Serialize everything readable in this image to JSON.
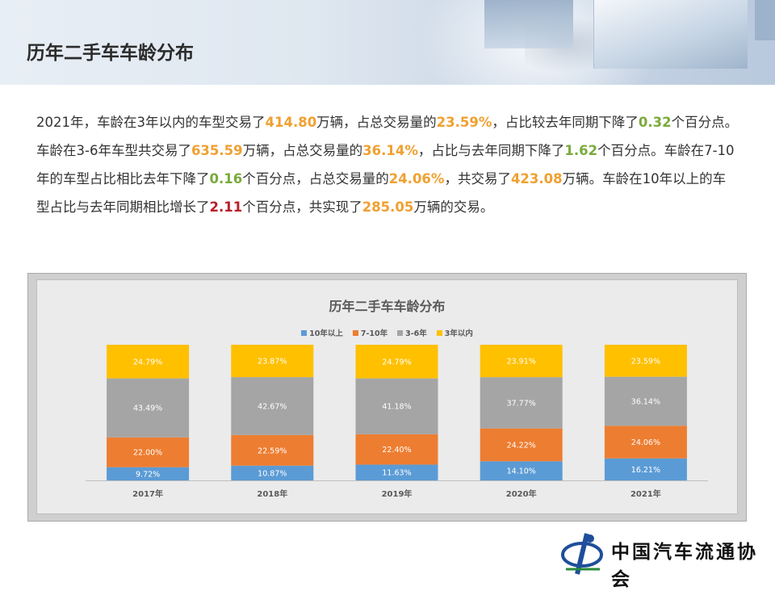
{
  "page": {
    "title": "历年二手车车龄分布"
  },
  "intro": {
    "segments": [
      {
        "t": "2021年，车龄在3年以内的车型交易了",
        "c": "n"
      },
      {
        "t": "414.80",
        "c": "orange"
      },
      {
        "t": "万辆，占总交易量的",
        "c": "n"
      },
      {
        "t": "23.59%",
        "c": "orange"
      },
      {
        "t": "，占比较去年同期下降了",
        "c": "n"
      },
      {
        "t": "0.32",
        "c": "green"
      },
      {
        "t": "个百分点。车龄在3-6年车型共交易了",
        "c": "n"
      },
      {
        "t": "635.59",
        "c": "orange"
      },
      {
        "t": "万辆，占总交易量的",
        "c": "n"
      },
      {
        "t": "36.14%",
        "c": "orange"
      },
      {
        "t": "，占比与去年同期下降了",
        "c": "n"
      },
      {
        "t": "1.62",
        "c": "green"
      },
      {
        "t": "个百分点。车龄在7-10年的车型占比相比去年下降了",
        "c": "n"
      },
      {
        "t": "0.16",
        "c": "green"
      },
      {
        "t": "个百分点，占总交易量的",
        "c": "n"
      },
      {
        "t": "24.06%",
        "c": "orange"
      },
      {
        "t": "，共交易了",
        "c": "n"
      },
      {
        "t": "423.08",
        "c": "orange"
      },
      {
        "t": "万辆。车龄在10年以上的车型占比与去年同期相比增长了",
        "c": "n"
      },
      {
        "t": "2.11",
        "c": "red"
      },
      {
        "t": "个百分点，共实现了",
        "c": "n"
      },
      {
        "t": "285.05",
        "c": "orange"
      },
      {
        "t": "万辆的交易。",
        "c": "n"
      }
    ]
  },
  "chart_data": {
    "type": "bar",
    "stacked": true,
    "normalized_percent": true,
    "title": "历年二手车车龄分布",
    "categories": [
      "2017年",
      "2018年",
      "2019年",
      "2020年",
      "2021年"
    ],
    "series": [
      {
        "name": "10年以上",
        "color": "#5b9bd5",
        "values": [
          9.72,
          10.87,
          11.63,
          14.1,
          16.21
        ]
      },
      {
        "name": "7-10年",
        "color": "#ed7d31",
        "values": [
          22.0,
          22.59,
          22.4,
          24.22,
          24.06
        ]
      },
      {
        "name": "3-6年",
        "color": "#a5a5a5",
        "values": [
          43.49,
          42.67,
          41.18,
          37.77,
          36.14
        ]
      },
      {
        "name": "3年以内",
        "color": "#ffc000",
        "values": [
          24.79,
          23.87,
          24.79,
          23.91,
          23.59
        ]
      }
    ],
    "ylim": [
      0,
      100
    ],
    "legend": "top",
    "grid": false,
    "data_labels": true
  },
  "logo": {
    "name": "中国汽车流通协会",
    "icon": "cada-logo-icon"
  }
}
